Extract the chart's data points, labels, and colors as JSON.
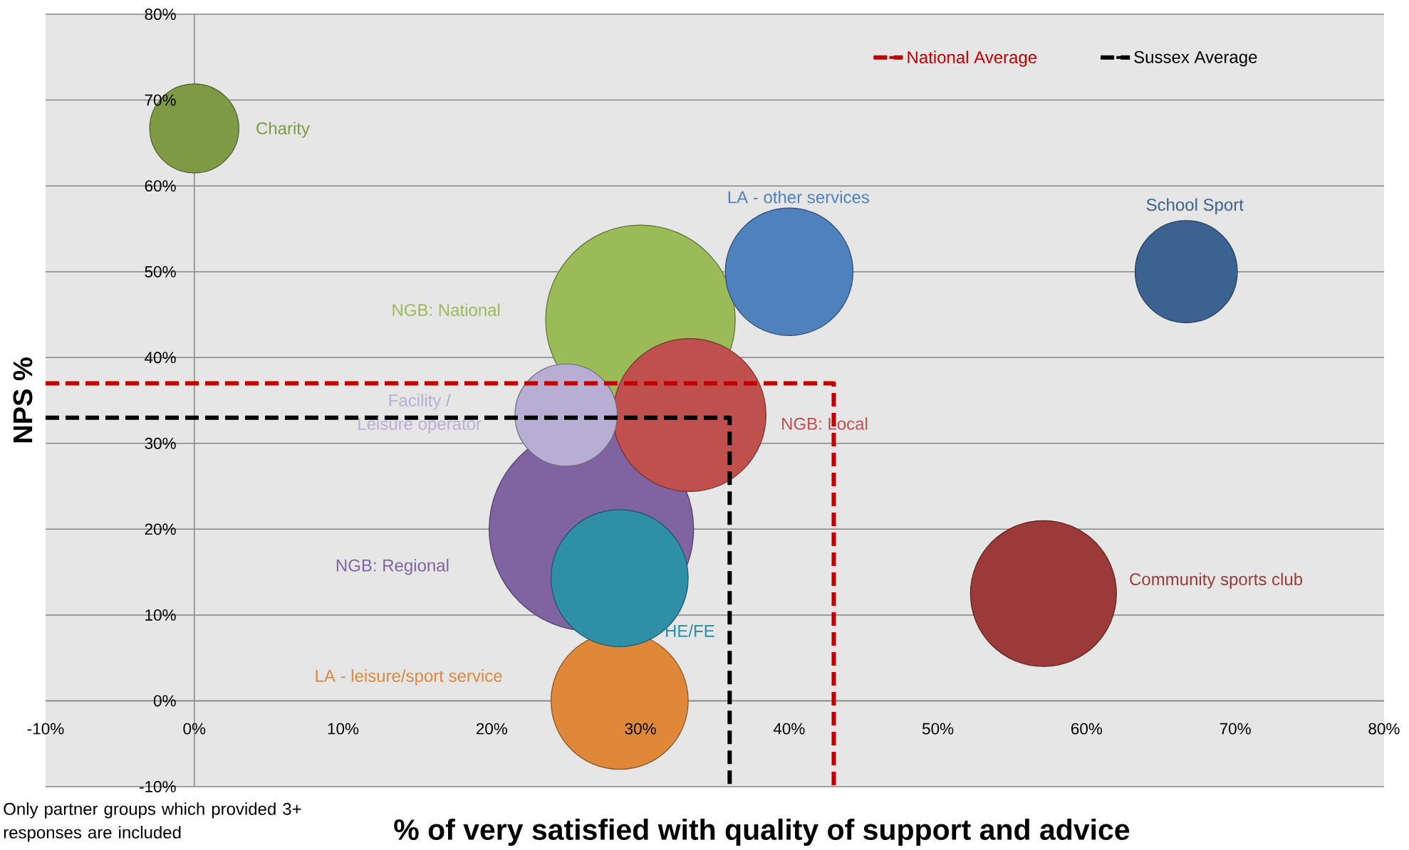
{
  "chart_data": {
    "type": "bubble",
    "xlabel": "% of very satisfied with quality of support and advice",
    "ylabel": "NPS %",
    "annotations": [
      "Only partner groups which provided 3+ responses are included"
    ],
    "xlim": [
      -10,
      80
    ],
    "ylim": [
      -10,
      80
    ],
    "xticks": [
      {
        "value": -10,
        "label": "-10%"
      },
      {
        "value": 0,
        "label": "0%"
      },
      {
        "value": 10,
        "label": "10%"
      },
      {
        "value": 20,
        "label": "20%"
      },
      {
        "value": 30,
        "label": "30%"
      },
      {
        "value": 40,
        "label": "40%"
      },
      {
        "value": 50,
        "label": "50%"
      },
      {
        "value": 60,
        "label": "60%"
      },
      {
        "value": 70,
        "label": "70%"
      },
      {
        "value": 80,
        "label": "80%"
      }
    ],
    "yticks": [
      {
        "value": -10,
        "label": "-10%"
      },
      {
        "value": 0,
        "label": "0%"
      },
      {
        "value": 10,
        "label": "10%"
      },
      {
        "value": 20,
        "label": "20%"
      },
      {
        "value": 30,
        "label": "30%"
      },
      {
        "value": 40,
        "label": "40%"
      },
      {
        "value": 50,
        "label": "50%"
      },
      {
        "value": 60,
        "label": "60%"
      },
      {
        "value": 70,
        "label": "70%"
      },
      {
        "value": 80,
        "label": "80%"
      }
    ],
    "grid": "y",
    "legend": "top right",
    "series": [
      {
        "name": "NGB: Regional",
        "color": "#8064a2",
        "x": [
          26.7
        ],
        "values": [
          20
        ],
        "sizes": [
          1
        ]
      },
      {
        "name": "NGB: National",
        "color": "#9bbb59",
        "x": [
          30
        ],
        "values": [
          44.4
        ],
        "sizes": [
          0.86
        ]
      },
      {
        "name": "NGB: Local",
        "color": "#c0504d",
        "x": [
          33.3
        ],
        "values": [
          33.3
        ],
        "sizes": [
          0.56
        ]
      },
      {
        "name": "Community sports club",
        "color": "#9b3a38",
        "x": [
          57.1
        ],
        "values": [
          12.5
        ],
        "sizes": [
          0.51
        ]
      },
      {
        "name": "LA - leisure/sport service",
        "color": "#e0883a",
        "x": [
          28.6
        ],
        "values": [
          0
        ],
        "sizes": [
          0.45
        ]
      },
      {
        "name": "HE/FE",
        "color": "#2e8fa6",
        "x": [
          28.6
        ],
        "values": [
          14.3
        ],
        "sizes": [
          0.45
        ]
      },
      {
        "name": "LA - other services",
        "color": "#4f81bd",
        "x": [
          40
        ],
        "values": [
          50
        ],
        "sizes": [
          0.39
        ]
      },
      {
        "name": "School Sport",
        "color": "#3b6290",
        "x": [
          66.7
        ],
        "values": [
          50
        ],
        "sizes": [
          0.25
        ]
      },
      {
        "name": "Facility / Leisure operator",
        "color": "#b8aed3",
        "x": [
          25
        ],
        "values": [
          33.3
        ],
        "sizes": [
          0.25
        ]
      },
      {
        "name": "Charity",
        "color": "#7f9a45",
        "x": [
          0
        ],
        "values": [
          66.7
        ],
        "sizes": [
          0.19
        ]
      },
      {
        "name": "National Average",
        "type": "line",
        "color": "#c00000",
        "line_style": "dashed",
        "x": [
          -10,
          43,
          43
        ],
        "values": [
          37,
          37,
          -10
        ]
      },
      {
        "name": "Sussex Average",
        "type": "line",
        "color": "#000000",
        "line_style": "dashed",
        "x": [
          -10,
          36,
          36
        ],
        "values": [
          33,
          33,
          -10
        ]
      }
    ]
  }
}
